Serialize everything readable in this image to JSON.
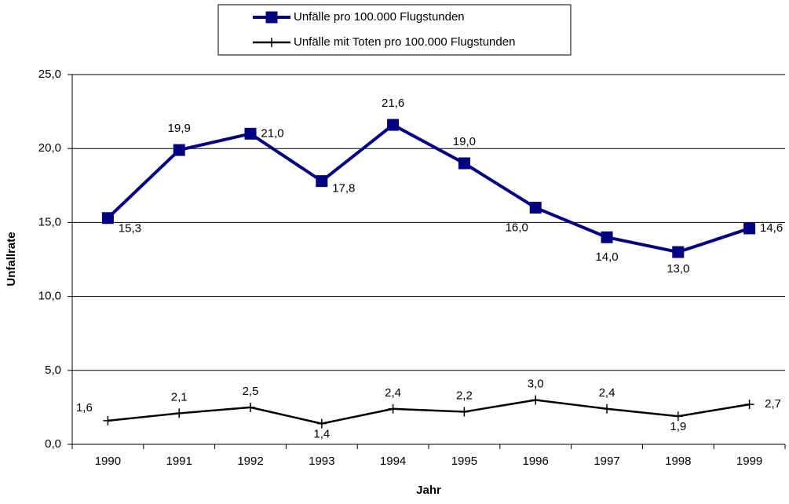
{
  "chart_data": {
    "type": "line",
    "x_label": "Jahr",
    "y_label": "Unfallrate",
    "categories": [
      "1990",
      "1991",
      "1992",
      "1993",
      "1994",
      "1995",
      "1996",
      "1997",
      "1998",
      "1999"
    ],
    "series": [
      {
        "name": "Unfälle pro 100.000 Flugstunden",
        "color": "#000080",
        "marker": "square",
        "values": [
          15.3,
          19.9,
          21.0,
          17.8,
          21.6,
          19.0,
          16.0,
          14.0,
          13.0,
          14.6
        ],
        "value_labels": [
          "15,3",
          "19,9",
          "21,0",
          "17,8",
          "21,6",
          "19,0",
          "16,0",
          "14,0",
          "13,0",
          "14,6"
        ]
      },
      {
        "name": "Unfälle mit Toten pro 100.000 Flugstunden",
        "color": "#000000",
        "marker": "plus",
        "values": [
          1.6,
          2.1,
          2.5,
          1.4,
          2.4,
          2.2,
          3.0,
          2.4,
          1.9,
          2.7
        ],
        "value_labels": [
          "1,6",
          "2,1",
          "2,5",
          "1,4",
          "2,4",
          "2,2",
          "3,0",
          "2,4",
          "1,9",
          "2,7"
        ]
      }
    ],
    "ylim": [
      0,
      25
    ],
    "yticks": [
      {
        "value": 0,
        "label": "0,0"
      },
      {
        "value": 5,
        "label": "5,0"
      },
      {
        "value": 10,
        "label": "10,0"
      },
      {
        "value": 15,
        "label": "15,0"
      },
      {
        "value": 20,
        "label": "20,0"
      },
      {
        "value": 25,
        "label": "25,0"
      }
    ],
    "grid": true,
    "legend": "top"
  }
}
